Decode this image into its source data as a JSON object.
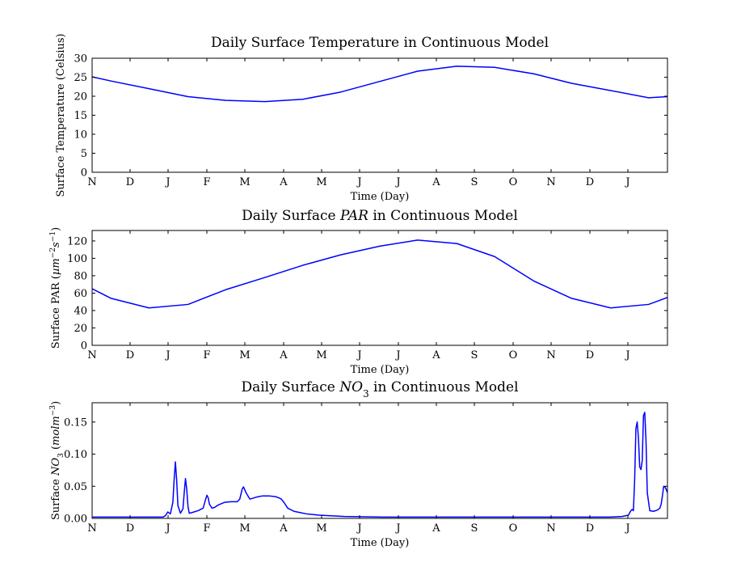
{
  "chart_data": [
    {
      "type": "line",
      "title": "Daily Surface Temperature in Continuous Model",
      "title_parts": [
        {
          "text": "Daily Surface Temperature in Continuous Model",
          "italic": false
        }
      ],
      "xlabel": "Time (Day)",
      "ylabel": "Surface Temperature (Celsius)",
      "ylabel_parts": [
        {
          "text": "Surface Temperature (Celsius)",
          "italic": false
        }
      ],
      "x_tick_labels": [
        "N",
        "D",
        "J",
        "F",
        "M",
        "A",
        "M",
        "J",
        "J",
        "A",
        "S",
        "O",
        "N",
        "D",
        "J"
      ],
      "xlim": [
        0,
        456
      ],
      "ylim": [
        0,
        30
      ],
      "y_ticks": [
        0,
        5,
        10,
        15,
        20,
        25,
        30
      ],
      "y_tick_labels": [
        "0",
        "5",
        "10",
        "15",
        "20",
        "25",
        "30"
      ],
      "grid": false,
      "series": [
        {
          "color": "#0000ff",
          "x": [
            0,
            15,
            45,
            76,
            106,
            137,
            167,
            197,
            228,
            258,
            289,
            319,
            350,
            380,
            411,
            441,
            456
          ],
          "y": [
            25.1,
            24.0,
            22.0,
            19.9,
            18.9,
            18.6,
            19.2,
            21.1,
            23.9,
            26.6,
            27.9,
            27.6,
            25.9,
            23.4,
            21.5,
            19.6,
            19.9
          ]
        }
      ]
    },
    {
      "type": "line",
      "title": "Daily Surface PAR in Continuous Model",
      "title_parts": [
        {
          "text": "Daily Surface ",
          "italic": false
        },
        {
          "text": "PAR",
          "italic": true
        },
        {
          "text": " in Continuous Model",
          "italic": false
        }
      ],
      "xlabel": "Time (Day)",
      "ylabel": "Surface PAR (µm^-2 s^-1)",
      "ylabel_parts": [
        {
          "text": "Surface PAR (",
          "italic": false
        },
        {
          "text": "µm",
          "italic": true
        },
        {
          "text": "−2",
          "italic": false,
          "sup": true
        },
        {
          "text": "s",
          "italic": true
        },
        {
          "text": "−1",
          "italic": false,
          "sup": true
        },
        {
          "text": ")",
          "italic": false
        }
      ],
      "x_tick_labels": [
        "N",
        "D",
        "J",
        "F",
        "M",
        "A",
        "M",
        "J",
        "J",
        "A",
        "S",
        "O",
        "N",
        "D",
        "J"
      ],
      "xlim": [
        0,
        456
      ],
      "ylim": [
        0,
        132
      ],
      "y_ticks": [
        0,
        20,
        40,
        60,
        80,
        100,
        120
      ],
      "y_tick_labels": [
        "0",
        "20",
        "40",
        "60",
        "80",
        "100",
        "120"
      ],
      "grid": false,
      "series": [
        {
          "color": "#0000ff",
          "x": [
            0,
            15,
            45,
            76,
            106,
            137,
            167,
            197,
            228,
            258,
            289,
            319,
            350,
            380,
            411,
            441,
            456
          ],
          "y": [
            65,
            54,
            43,
            47,
            64,
            78,
            92,
            104,
            114,
            121,
            117,
            102,
            74,
            54,
            43,
            47,
            55
          ]
        }
      ]
    },
    {
      "type": "line",
      "title": "Daily Surface NO3 in Continuous Model",
      "title_parts": [
        {
          "text": "Daily Surface ",
          "italic": false
        },
        {
          "text": "NO",
          "italic": true
        },
        {
          "text": "3",
          "italic": false,
          "sub": true
        },
        {
          "text": " in Continuous Model",
          "italic": false
        }
      ],
      "xlabel": "Time (Day)",
      "ylabel": "Surface NO3 (molm^-3)",
      "ylabel_parts": [
        {
          "text": "Surface ",
          "italic": false
        },
        {
          "text": "NO",
          "italic": true
        },
        {
          "text": "3",
          "italic": false,
          "sub": true
        },
        {
          "text": " (",
          "italic": false
        },
        {
          "text": "molm",
          "italic": true
        },
        {
          "text": "−3",
          "italic": false,
          "sup": true
        },
        {
          "text": ")",
          "italic": false
        }
      ],
      "x_tick_labels": [
        "N",
        "D",
        "J",
        "F",
        "M",
        "A",
        "M",
        "J",
        "J",
        "A",
        "S",
        "O",
        "N",
        "D",
        "J"
      ],
      "xlim": [
        0,
        456
      ],
      "ylim": [
        0,
        0.18
      ],
      "y_ticks": [
        0,
        0.05,
        0.1,
        0.15
      ],
      "y_tick_labels": [
        "0.00",
        "0.05",
        "0.10",
        "0.15"
      ],
      "grid": false,
      "series": [
        {
          "color": "#0000ff",
          "x": [
            0,
            30,
            56,
            58,
            60,
            62,
            64,
            65,
            66,
            67,
            68,
            70,
            72,
            73,
            74,
            75,
            76,
            77,
            79,
            84,
            88,
            90,
            91,
            92,
            93,
            95,
            97,
            100,
            105,
            110,
            115,
            117,
            118,
            119,
            120,
            122,
            125,
            130,
            135,
            140,
            145,
            148,
            150,
            152,
            155,
            160,
            170,
            180,
            200,
            230,
            260,
            290,
            320,
            350,
            380,
            410,
            420,
            425,
            427,
            428,
            429,
            430,
            431,
            432,
            433,
            434,
            435,
            436,
            437,
            438,
            439,
            440,
            442,
            445,
            448,
            450,
            451,
            452,
            453,
            454,
            455,
            456
          ],
          "y": [
            0.002,
            0.002,
            0.002,
            0.004,
            0.01,
            0.007,
            0.025,
            0.06,
            0.088,
            0.06,
            0.02,
            0.008,
            0.015,
            0.04,
            0.062,
            0.045,
            0.018,
            0.008,
            0.009,
            0.012,
            0.016,
            0.03,
            0.036,
            0.032,
            0.022,
            0.016,
            0.017,
            0.021,
            0.025,
            0.026,
            0.026,
            0.03,
            0.038,
            0.046,
            0.049,
            0.04,
            0.03,
            0.033,
            0.035,
            0.035,
            0.034,
            0.032,
            0.03,
            0.025,
            0.016,
            0.011,
            0.007,
            0.005,
            0.003,
            0.002,
            0.002,
            0.002,
            0.002,
            0.002,
            0.002,
            0.002,
            0.003,
            0.005,
            0.012,
            0.014,
            0.012,
            0.06,
            0.14,
            0.15,
            0.125,
            0.08,
            0.076,
            0.09,
            0.16,
            0.165,
            0.12,
            0.04,
            0.012,
            0.011,
            0.013,
            0.016,
            0.022,
            0.035,
            0.05,
            0.049,
            0.045,
            0.04
          ]
        }
      ]
    }
  ]
}
